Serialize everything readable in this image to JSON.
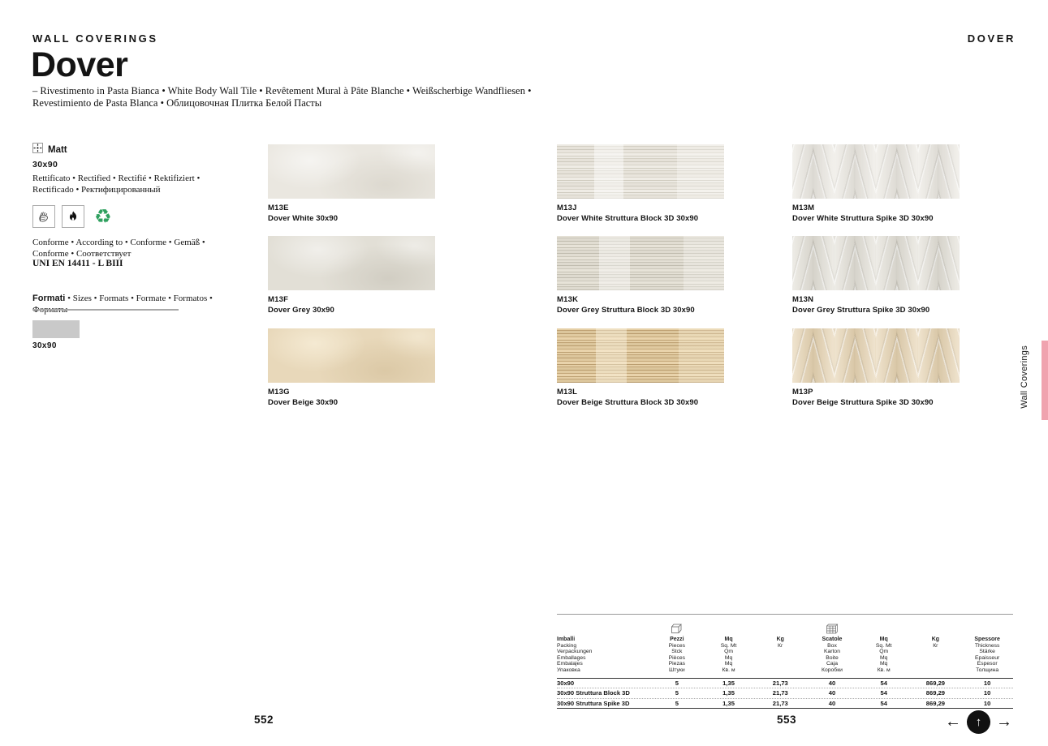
{
  "header": {
    "category": "WALL COVERINGS",
    "corner_label": "DOVER",
    "title": "Dover",
    "subtitle_line1": "– Rivestimento in Pasta Bianca • White Body Wall Tile • Revêtement Mural à Pâte Blanche • Weißscherbige Wandfliesen •",
    "subtitle_line2": "Revestimiento de Pasta Blanca • Облицовочная Плитка Белой Пасты"
  },
  "sidebar": {
    "finish_label": "Matt",
    "finish_size": "30x90",
    "rectified_line1": "Rettificato • Rectified • Rectifié • Rektifiziert •",
    "rectified_line2": "Rectificado • Ректифицированный",
    "cert_icons": [
      "glove-icon",
      "fire-rating-icon",
      "recyclable-icon"
    ],
    "recycle_glyph": "♻",
    "conformity_line1": "Conforme • According to • Conforme • Gemäß •",
    "conformity_line2": "Conforme • Соответствует",
    "standard": "UNI EN 14411 - L BIII",
    "formats_label": "Formati",
    "formats_rest": " • Sizes • Formats • Formate • Formatos • Форматы",
    "swatch_size_label": "30x90"
  },
  "products": [
    {
      "code": "M13E",
      "name": "Dover White 30x90",
      "texture": "plain",
      "color_way": "white"
    },
    {
      "code": "M13J",
      "name": "Dover White Struttura Block 3D 30x90",
      "texture": "block",
      "color_way": "white"
    },
    {
      "code": "M13M",
      "name": "Dover White Struttura Spike 3D 30x90",
      "texture": "spike",
      "color_way": "white"
    },
    {
      "code": "M13F",
      "name": "Dover Grey 30x90",
      "texture": "plain",
      "color_way": "grey"
    },
    {
      "code": "M13K",
      "name": "Dover Grey Struttura Block 3D 30x90",
      "texture": "block",
      "color_way": "grey"
    },
    {
      "code": "M13N",
      "name": "Dover Grey Struttura Spike 3D 30x90",
      "texture": "spike",
      "color_way": "grey"
    },
    {
      "code": "M13G",
      "name": "Dover Beige 30x90",
      "texture": "plain",
      "color_way": "beige"
    },
    {
      "code": "M13L",
      "name": "Dover Beige Struttura Block 3D 30x90",
      "texture": "block",
      "color_way": "beige"
    },
    {
      "code": "M13P",
      "name": "Dover Beige Struttura Spike 3D 30x90",
      "texture": "spike",
      "color_way": "beige"
    }
  ],
  "table": {
    "headers": [
      {
        "lines": [
          "Imballi",
          "Packing",
          "Verpackungen",
          "Emballages",
          "Embalajes",
          "Упаковка"
        ]
      },
      {
        "icon": "box-icon",
        "lines": [
          "Pezzi",
          "Pieces",
          "Stck",
          "Pièces",
          "Piezas",
          "Штуки"
        ]
      },
      {
        "lines": [
          "Mq",
          "Sq. Mt",
          "Qm",
          "Mq",
          "Mq",
          "Кв. м"
        ]
      },
      {
        "lines": [
          "Kg",
          "Кг"
        ]
      },
      {
        "icon": "pallet-icon",
        "lines": [
          "Scatole",
          "Box",
          "Karton",
          "Boite",
          "Caja",
          "Коробки"
        ]
      },
      {
        "lines": [
          "Mq",
          "Sq. Mt",
          "Qm",
          "Mq",
          "Mq",
          "Кв. м"
        ]
      },
      {
        "lines": [
          "Kg",
          "Кг"
        ]
      },
      {
        "lines": [
          "Spessore",
          "Thickness",
          "Stärke",
          "Epaisseur",
          "Espesor",
          "Толщина"
        ]
      }
    ],
    "rows": [
      [
        "30x90",
        "5",
        "1,35",
        "21,73",
        "40",
        "54",
        "869,29",
        "10"
      ],
      [
        "30x90 Struttura Block 3D",
        "5",
        "1,35",
        "21,73",
        "40",
        "54",
        "869,29",
        "10"
      ],
      [
        "30x90 Struttura Spike 3D",
        "5",
        "1,35",
        "21,73",
        "40",
        "54",
        "869,29",
        "10"
      ]
    ]
  },
  "footer": {
    "left_page": "552",
    "right_page": "553",
    "prev_glyph": "←",
    "up_glyph": "↑",
    "next_glyph": "→"
  },
  "side_tab": {
    "label": "Wall Coverings",
    "bar_color": "#f0a3af"
  }
}
